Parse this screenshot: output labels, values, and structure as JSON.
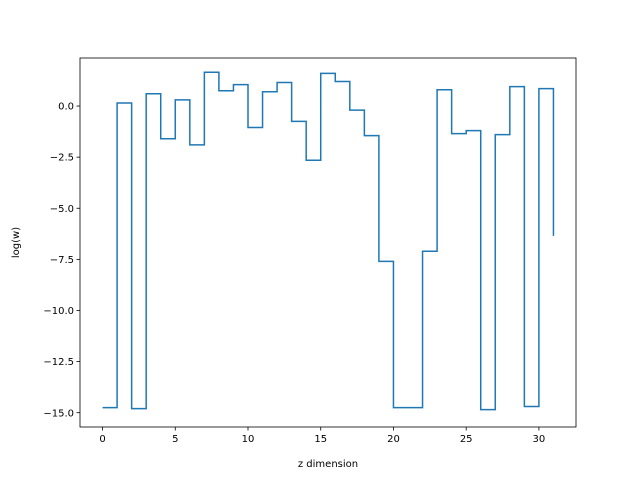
{
  "chart_data": {
    "type": "line",
    "drawstyle": "steps-post",
    "title": "",
    "xlabel": "z dimension",
    "ylabel": "log(w)",
    "xlim": [
      -1.55,
      32.55
    ],
    "ylim": [
      -15.7,
      2.35
    ],
    "x_ticks": [
      0,
      5,
      10,
      15,
      20,
      25,
      30
    ],
    "x_tick_labels": [
      "0",
      "5",
      "10",
      "15",
      "20",
      "25",
      "30"
    ],
    "y_ticks": [
      0.0,
      -2.5,
      -5.0,
      -7.5,
      -10.0,
      -12.5,
      -15.0
    ],
    "y_tick_labels": [
      "0.0",
      "−2.5",
      "−5.0",
      "−7.5",
      "−10.0",
      "−12.5",
      "−15.0"
    ],
    "grid": false,
    "legend": false,
    "series": [
      {
        "color": "#1f77b4",
        "x": [
          0,
          1,
          2,
          3,
          4,
          5,
          6,
          7,
          8,
          9,
          10,
          11,
          12,
          13,
          14,
          15,
          16,
          17,
          18,
          19,
          20,
          21,
          22,
          23,
          24,
          25,
          26,
          27,
          28,
          29,
          30,
          31
        ],
        "y": [
          -14.75,
          0.15,
          -14.8,
          0.6,
          -1.6,
          0.3,
          -1.9,
          1.65,
          0.75,
          1.05,
          -1.05,
          0.7,
          1.15,
          -0.75,
          -2.65,
          1.6,
          1.2,
          -0.2,
          -1.45,
          -7.6,
          -14.75,
          -14.75,
          -7.1,
          0.8,
          -1.35,
          -1.2,
          -14.85,
          -1.4,
          0.95,
          -14.7,
          0.85,
          -6.35
        ]
      }
    ]
  }
}
